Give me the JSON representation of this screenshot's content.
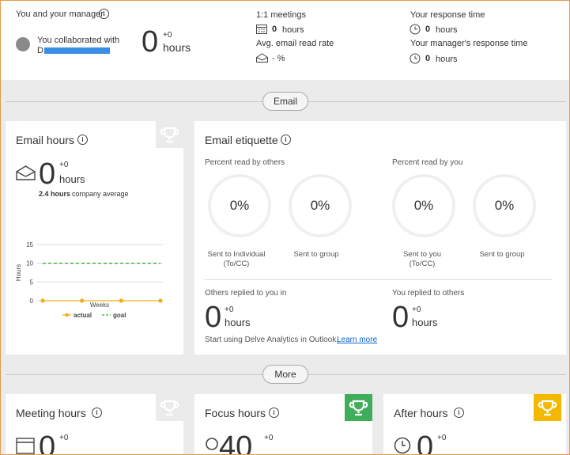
{
  "manager": {
    "title": "You and your manager",
    "collaborated": "You collaborated with",
    "name": "D",
    "hours_value": 0,
    "hours_delta": "+0",
    "hours_unit": "hours"
  },
  "meetings": {
    "title": "1:1 meetings",
    "value": 0,
    "unit": "hours"
  },
  "read_rate": {
    "title": "Avg. email read rate",
    "value": "- %"
  },
  "response": {
    "title": "Your response time",
    "value": 0,
    "unit": "hours"
  },
  "manager_response": {
    "title": "Your manager's response time",
    "value": 0,
    "unit": "hours"
  },
  "sections": [
    "Email",
    "More"
  ],
  "email_hours": {
    "title": "Email hours",
    "value": 0,
    "delta": "+0",
    "unit": "hours",
    "average": "2.4 hours",
    "average_label": "company average"
  },
  "chart_data": {
    "type": "line",
    "ylabel": "Hours",
    "xlabel": "Weeks",
    "categories": [
      null,
      null,
      null,
      null
    ],
    "series": [
      {
        "name": "actual",
        "color": "#f0ad1c",
        "style": "solid",
        "values": [
          0,
          0,
          0,
          0
        ]
      },
      {
        "name": "goal",
        "color": "#3aa935",
        "style": "dashed",
        "values": [
          10,
          10,
          10,
          10
        ]
      }
    ],
    "ylim": [
      0,
      15
    ],
    "yticks": [
      0,
      5,
      10,
      15
    ],
    "grid": true
  },
  "etiquette": {
    "title": "Email etiquette",
    "read_by_others": "Percent read by others",
    "read_by_you": "Percent read by you",
    "gauges": [
      {
        "value": "0%",
        "label": "Sent to Individual (To/CC)"
      },
      {
        "value": "0%",
        "label": "Sent to group"
      },
      {
        "value": "0%",
        "label": "Sent to you (To/CC)"
      },
      {
        "value": "0%",
        "label": "Sent to group"
      }
    ],
    "others_replied": {
      "title": "Others replied to you in",
      "value": 0,
      "delta": "+0",
      "unit": "hours"
    },
    "you_replied": {
      "title": "You replied to others",
      "value": 0,
      "delta": "+0",
      "unit": "hours"
    },
    "footer": "Start using Delve Analytics in Outlook.",
    "link": "Learn more"
  },
  "cards": [
    {
      "title": "Meeting hours",
      "value": 0,
      "delta": "+0"
    },
    {
      "title": "Focus hours",
      "value": 40,
      "delta": "+0"
    },
    {
      "title": "After hours",
      "value": 0,
      "delta": "+0"
    }
  ]
}
